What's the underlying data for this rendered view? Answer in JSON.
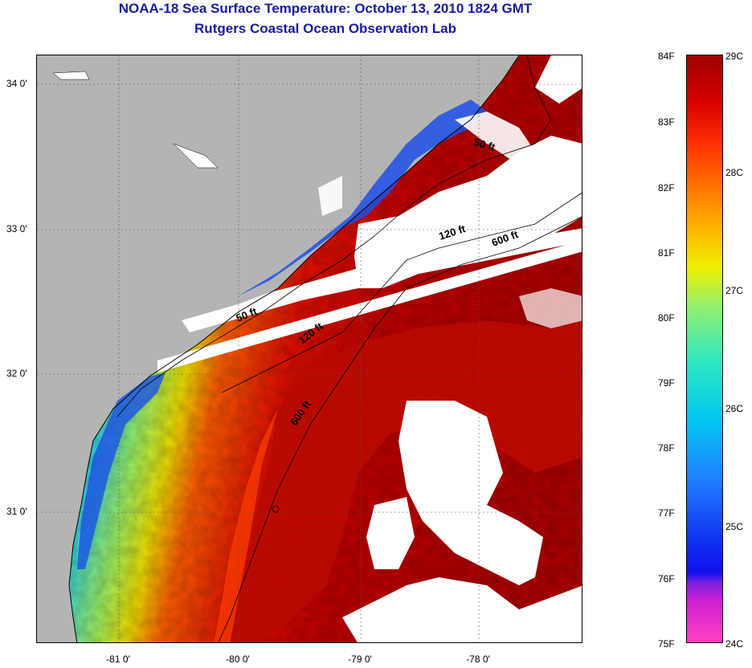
{
  "title": {
    "line1": "NOAA-18 Sea Surface Temperature:  October 13, 2010 1824 GMT",
    "line2": "Rutgers Coastal Ocean Observation Lab"
  },
  "map": {
    "lat_labels": [
      "34 0'",
      "33 0'",
      "32 0'",
      "31 0'"
    ],
    "lon_labels": [
      "-81 0'",
      "-80 0'",
      "-79 0'",
      "-78 0'"
    ],
    "contour_labels": [
      "50 ft",
      "50 ft",
      "120 ft",
      "120 ft",
      "600 ft",
      "600 ft"
    ],
    "colors": {
      "land": "#b4b4b4",
      "cloud": "#ffffff",
      "warm": "#b00000",
      "cool": "#1840e0"
    }
  },
  "colorbar": {
    "fahrenheit": [
      "84F",
      "83F",
      "82F",
      "81F",
      "80F",
      "79F",
      "78F",
      "77F",
      "76F",
      "75F"
    ],
    "celsius": [
      "29C",
      "28C",
      "27C",
      "26C",
      "25C",
      "24C"
    ]
  }
}
